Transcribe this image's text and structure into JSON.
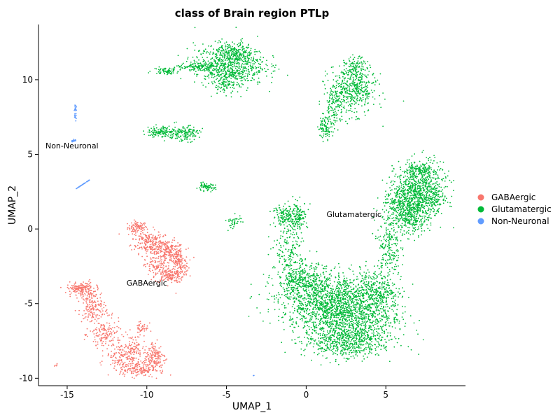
{
  "chart_data": {
    "type": "scatter",
    "title": "class of Brain region PTLp",
    "xlabel": "UMAP_1",
    "ylabel": "UMAP_2",
    "xlim": [
      -16.8,
      10.0
    ],
    "ylim": [
      -10.5,
      13.7
    ],
    "x_ticks": [
      -15,
      -10,
      -5,
      0,
      5
    ],
    "x_tick_labels": [
      "-15",
      "-10",
      "-5",
      "0",
      "5"
    ],
    "y_ticks": [
      -10,
      -5,
      0,
      5,
      10
    ],
    "y_tick_labels": [
      "-10",
      "-5",
      "0",
      "5",
      "10"
    ],
    "grid": false,
    "legend_position": "right",
    "series": [
      {
        "name": "GABAergic",
        "color": "#F8766D",
        "clusters": [
          {
            "center": [
              -10.6,
              0.1
            ],
            "spread": [
              0.3,
              0.2
            ],
            "n": 90
          },
          {
            "center": [
              -10.0,
              -0.8
            ],
            "spread": [
              0.5,
              0.4
            ],
            "n": 140
          },
          {
            "center": [
              -9.3,
              -1.2
            ],
            "spread": [
              0.5,
              0.35
            ],
            "n": 140
          },
          {
            "center": [
              -8.5,
              -1.6
            ],
            "spread": [
              0.4,
              0.35
            ],
            "n": 140
          },
          {
            "center": [
              -8.0,
              -2.3
            ],
            "spread": [
              0.3,
              0.5
            ],
            "n": 140
          },
          {
            "center": [
              -8.6,
              -3.1
            ],
            "spread": [
              0.45,
              0.25
            ],
            "n": 150
          },
          {
            "center": [
              -9.4,
              -2.5
            ],
            "spread": [
              0.35,
              0.3
            ],
            "n": 80
          },
          {
            "center": [
              -14.2,
              -4.0
            ],
            "spread": [
              0.4,
              0.2
            ],
            "n": 140
          },
          {
            "center": [
              -13.5,
              -4.6
            ],
            "spread": [
              0.35,
              0.5
            ],
            "n": 110
          },
          {
            "center": [
              -13.3,
              -5.6
            ],
            "spread": [
              0.4,
              0.5
            ],
            "n": 100
          },
          {
            "center": [
              -12.6,
              -7.1
            ],
            "spread": [
              0.5,
              0.5
            ],
            "n": 140
          },
          {
            "center": [
              -11.6,
              -8.5
            ],
            "spread": [
              0.5,
              0.4
            ],
            "n": 130
          },
          {
            "center": [
              -10.6,
              -9.4
            ],
            "spread": [
              0.55,
              0.25
            ],
            "n": 160
          },
          {
            "center": [
              -9.5,
              -8.6
            ],
            "spread": [
              0.35,
              0.55
            ],
            "n": 170
          },
          {
            "center": [
              -10.3,
              -6.6
            ],
            "spread": [
              0.2,
              0.3
            ],
            "n": 40
          },
          {
            "center": [
              -10.9,
              -8.0
            ],
            "spread": [
              0.3,
              0.5
            ],
            "n": 80
          },
          {
            "center": [
              -15.7,
              -9.1
            ],
            "spread": [
              0.05,
              0.05
            ],
            "n": 5
          }
        ]
      },
      {
        "name": "Glutamatergic",
        "color": "#00BA38",
        "clusters": [
          {
            "center": [
              -4.8,
              11.0
            ],
            "spread": [
              1.1,
              0.7
            ],
            "n": 700
          },
          {
            "center": [
              -4.5,
              11.8
            ],
            "spread": [
              0.6,
              0.35
            ],
            "n": 150
          },
          {
            "center": [
              -6.7,
              10.8
            ],
            "spread": [
              0.8,
              0.15
            ],
            "n": 130
          },
          {
            "center": [
              -8.8,
              10.6
            ],
            "spread": [
              0.4,
              0.12
            ],
            "n": 70
          },
          {
            "center": [
              -5.0,
              9.8
            ],
            "spread": [
              0.4,
              0.3
            ],
            "n": 90
          },
          {
            "center": [
              2.9,
              9.3
            ],
            "spread": [
              0.75,
              0.8
            ],
            "n": 450
          },
          {
            "center": [
              3.1,
              10.8
            ],
            "spread": [
              0.35,
              0.35
            ],
            "n": 100
          },
          {
            "center": [
              1.8,
              8.2
            ],
            "spread": [
              0.3,
              0.7
            ],
            "n": 110
          },
          {
            "center": [
              1.2,
              6.8
            ],
            "spread": [
              0.22,
              0.35
            ],
            "n": 90
          },
          {
            "center": [
              -9.0,
              6.5
            ],
            "spread": [
              0.5,
              0.2
            ],
            "n": 140
          },
          {
            "center": [
              -7.6,
              6.4
            ],
            "spread": [
              0.45,
              0.25
            ],
            "n": 140
          },
          {
            "center": [
              -6.3,
              2.8
            ],
            "spread": [
              0.3,
              0.12
            ],
            "n": 70
          },
          {
            "center": [
              -4.5,
              0.5
            ],
            "spread": [
              0.25,
              0.25
            ],
            "n": 40
          },
          {
            "center": [
              -1.3,
              0.9
            ],
            "spread": [
              0.4,
              0.35
            ],
            "n": 130
          },
          {
            "center": [
              -0.5,
              0.9
            ],
            "spread": [
              0.3,
              0.45
            ],
            "n": 130
          },
          {
            "center": [
              -1.0,
              -1.4
            ],
            "spread": [
              0.45,
              1.0
            ],
            "n": 160
          },
          {
            "center": [
              -0.3,
              -3.5
            ],
            "spread": [
              0.8,
              0.6
            ],
            "n": 350
          },
          {
            "center": [
              1.4,
              -4.9
            ],
            "spread": [
              1.6,
              1.0
            ],
            "n": 1100
          },
          {
            "center": [
              3.1,
              -5.8
            ],
            "spread": [
              1.4,
              1.2
            ],
            "n": 1000
          },
          {
            "center": [
              2.3,
              -7.6
            ],
            "spread": [
              1.3,
              0.5
            ],
            "n": 450
          },
          {
            "center": [
              4.6,
              -4.0
            ],
            "spread": [
              0.6,
              0.7
            ],
            "n": 200
          },
          {
            "center": [
              5.2,
              -1.2
            ],
            "spread": [
              0.35,
              1.0
            ],
            "n": 180
          },
          {
            "center": [
              6.2,
              1.5
            ],
            "spread": [
              0.7,
              0.8
            ],
            "n": 500
          },
          {
            "center": [
              7.2,
              2.8
            ],
            "spread": [
              0.8,
              0.9
            ],
            "n": 550
          },
          {
            "center": [
              6.7,
              0.7
            ],
            "spread": [
              0.5,
              0.5
            ],
            "n": 150
          },
          {
            "center": [
              7.7,
              1.9
            ],
            "spread": [
              0.5,
              0.4
            ],
            "n": 150
          },
          {
            "center": [
              7.1,
              3.9
            ],
            "spread": [
              0.5,
              0.2
            ],
            "n": 120
          }
        ]
      },
      {
        "name": "Non-Neuronal",
        "color": "#619CFF",
        "clusters": [
          {
            "center": [
              -14.5,
              8.0
            ],
            "spread": [
              0.04,
              0.15
            ],
            "n": 15
          },
          {
            "center": [
              -14.5,
              7.5
            ],
            "spread": [
              0.04,
              0.1
            ],
            "n": 8
          },
          {
            "center": [
              -14.6,
              5.9
            ],
            "spread": [
              0.08,
              0.05
            ],
            "n": 18
          },
          {
            "center": [
              -14.0,
              3.0
            ],
            "spread": [
              0.5,
              0.35
            ],
            "n": 40,
            "linear": true
          },
          {
            "center": [
              -3.3,
              -9.8
            ],
            "spread": [
              0.03,
              0.03
            ],
            "n": 2
          }
        ]
      }
    ],
    "cluster_labels": [
      {
        "text": "Non-Neuronal",
        "x": -14.7,
        "y": 5.4
      },
      {
        "text": "GABAergic",
        "x": -10.0,
        "y": -3.8
      },
      {
        "text": "Glutamatergic",
        "x": 3.0,
        "y": 0.8
      }
    ]
  }
}
